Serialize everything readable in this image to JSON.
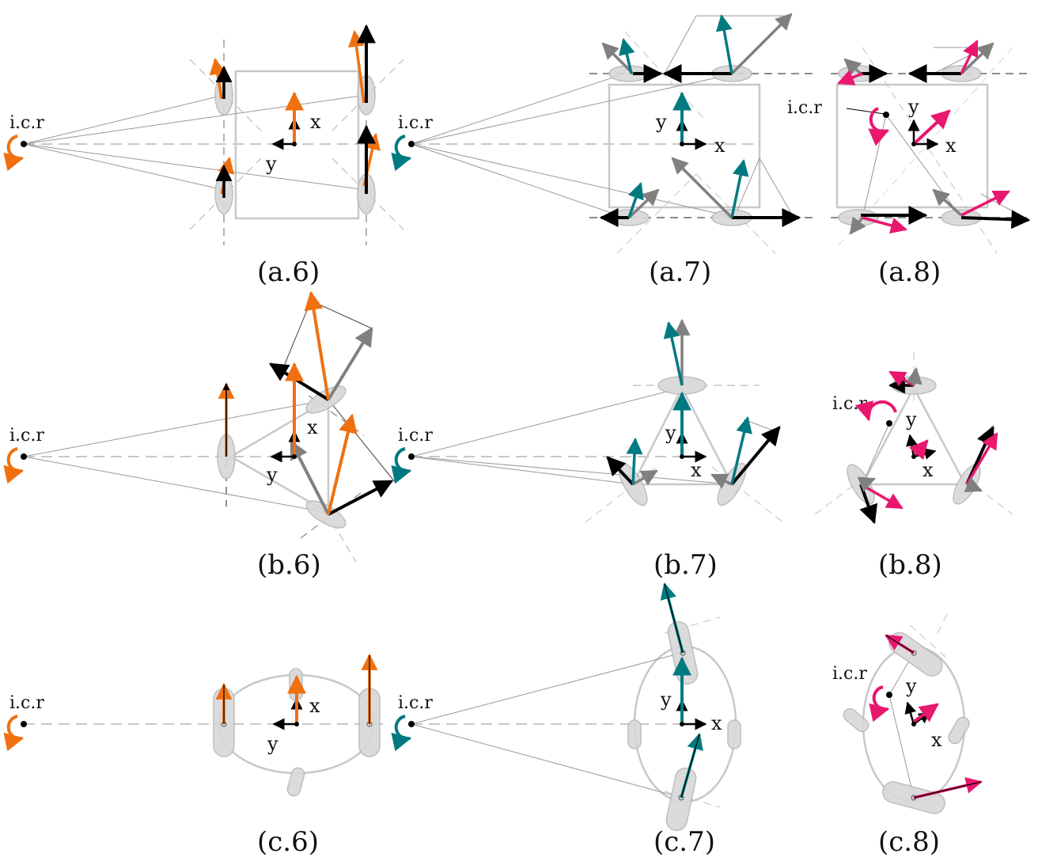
{
  "figure": {
    "colors": {
      "black": "#000000",
      "gray": "#808080",
      "chassis": "#c8c8c8",
      "wheel_fill": "#d8d8d8",
      "wheel_stroke": "#b8b8b8",
      "guide": "#9a9a9a",
      "thin_line": "#8c8c8c",
      "orange": "#f07010",
      "teal": "#007a80",
      "magenta": "#e8186e"
    },
    "icons": {
      "rotation": "curved-rotation-arrow-icon",
      "icr_point": "black-dot-icon"
    },
    "panels": [
      {
        "id": "a6",
        "caption": "(a.6)",
        "icr_label": "i.c.r",
        "x_label": "x",
        "y_label": "y",
        "accent": "orange",
        "shape": "square"
      },
      {
        "id": "a7",
        "caption": "(a.7)",
        "icr_label": "i.c.r",
        "x_label": "x",
        "y_label": "y",
        "accent": "teal",
        "shape": "square"
      },
      {
        "id": "a8",
        "caption": "(a.8)",
        "icr_label": "i.c.r",
        "x_label": "x",
        "y_label": "y",
        "accent": "magenta",
        "shape": "square"
      },
      {
        "id": "b6",
        "caption": "(b.6)",
        "icr_label": "i.c.r",
        "x_label": "x",
        "y_label": "y",
        "accent": "orange",
        "shape": "triangle"
      },
      {
        "id": "b7",
        "caption": "(b.7)",
        "icr_label": "i.c.r",
        "x_label": "x",
        "y_label": "y",
        "accent": "teal",
        "shape": "triangle"
      },
      {
        "id": "b8",
        "caption": "(b.8)",
        "icr_label": "i.c.r",
        "x_label": "x",
        "y_label": "y",
        "accent": "magenta",
        "shape": "triangle"
      },
      {
        "id": "c6",
        "caption": "(c.6)",
        "icr_label": "i.c.r",
        "x_label": "x",
        "y_label": "y",
        "accent": "orange",
        "shape": "ellipse"
      },
      {
        "id": "c7",
        "caption": "(c.7)",
        "icr_label": "i.c.r",
        "x_label": "x",
        "y_label": "y",
        "accent": "teal",
        "shape": "ellipse"
      },
      {
        "id": "c8",
        "caption": "(c.8)",
        "icr_label": "i.c.r",
        "x_label": "x",
        "y_label": "y",
        "accent": "magenta",
        "shape": "ellipse"
      }
    ]
  }
}
